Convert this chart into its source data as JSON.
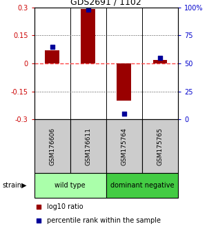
{
  "title": "GDS2691 / 1102",
  "samples": [
    "GSM176606",
    "GSM176611",
    "GSM175764",
    "GSM175765"
  ],
  "log10_ratio": [
    0.07,
    0.29,
    -0.2,
    0.02
  ],
  "percentile_rank": [
    65,
    98,
    5,
    55
  ],
  "ylim_left": [
    -0.3,
    0.3
  ],
  "ylim_right": [
    0,
    100
  ],
  "yticks_left": [
    -0.3,
    -0.15,
    0,
    0.15,
    0.3
  ],
  "yticks_right": [
    0,
    25,
    50,
    75,
    100
  ],
  "ytick_labels_right": [
    "0",
    "25",
    "50",
    "75",
    "100%"
  ],
  "hlines": [
    0.15,
    -0.15
  ],
  "groups": [
    {
      "label": "wild type",
      "samples": [
        0,
        1
      ],
      "color": "#aaffaa"
    },
    {
      "label": "dominant negative",
      "samples": [
        2,
        3
      ],
      "color": "#44cc44"
    }
  ],
  "bar_color": "#990000",
  "dot_color": "#000099",
  "zero_line_color": "#ff4444",
  "hline_color": "#444444",
  "bg_color": "#ffffff",
  "label_area_color": "#cccccc",
  "title_color": "#000000",
  "left_tick_color": "#cc0000",
  "right_tick_color": "#0000cc",
  "bar_width": 0.4
}
